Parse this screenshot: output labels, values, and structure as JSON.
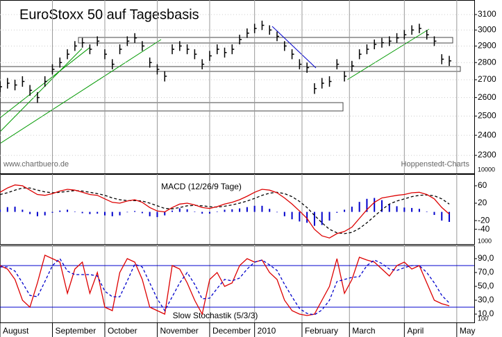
{
  "chart_data": [
    {
      "type": "ohlc",
      "title": "EuroStoxx 50 auf Tagesbasis",
      "color": "#000000",
      "log_scale": true,
      "grid": true,
      "xlim": [
        0,
        190
      ],
      "ylim": [
        2214,
        3197
      ],
      "yticks": [
        2300,
        2400,
        2500,
        2600,
        2700,
        2800,
        2900,
        3000,
        3100
      ],
      "annotations": [
        "www.chartbuero.de",
        "Hoppenstedt-Charts"
      ],
      "x": [
        0,
        3,
        6,
        9,
        12,
        15,
        18,
        21,
        24,
        27,
        30,
        33,
        36,
        39,
        42,
        45,
        48,
        51,
        54,
        57,
        60,
        63,
        66,
        69,
        72,
        75,
        78,
        81,
        84,
        87,
        90,
        93,
        96,
        99,
        102,
        105,
        108,
        111,
        114,
        117,
        120,
        123,
        126,
        129,
        132,
        135,
        138,
        141,
        144,
        147,
        150,
        153,
        156,
        159,
        162,
        165,
        168,
        171,
        174,
        177,
        180
      ],
      "high": [
        2690,
        2710,
        2700,
        2720,
        2670,
        2630,
        2720,
        2790,
        2830,
        2880,
        2930,
        2950,
        2910,
        2960,
        2880,
        2820,
        2910,
        2960,
        2980,
        2930,
        2830,
        2790,
        2750,
        2910,
        2930,
        2910,
        2880,
        2820,
        2870,
        2910,
        2890,
        2910,
        2970,
        3010,
        3040,
        3060,
        3030,
        2990,
        2930,
        2880,
        2820,
        2800,
        2680,
        2710,
        2720,
        2820,
        2750,
        2810,
        2880,
        2910,
        2940,
        2950,
        2960,
        2980,
        3000,
        3030,
        3040,
        3000,
        2960,
        2850,
        2840
      ],
      "low": [
        2630,
        2650,
        2640,
        2660,
        2610,
        2570,
        2660,
        2730,
        2770,
        2820,
        2870,
        2890,
        2850,
        2900,
        2820,
        2760,
        2850,
        2900,
        2920,
        2870,
        2770,
        2730,
        2690,
        2850,
        2870,
        2850,
        2820,
        2760,
        2810,
        2850,
        2830,
        2850,
        2910,
        2950,
        2980,
        3000,
        2970,
        2930,
        2870,
        2820,
        2760,
        2740,
        2620,
        2650,
        2660,
        2760,
        2690,
        2750,
        2820,
        2850,
        2880,
        2890,
        2900,
        2920,
        2940,
        2970,
        2980,
        2940,
        2900,
        2790,
        2780
      ],
      "close": [
        2660,
        2680,
        2670,
        2690,
        2640,
        2600,
        2690,
        2760,
        2800,
        2850,
        2900,
        2920,
        2880,
        2930,
        2850,
        2790,
        2880,
        2930,
        2950,
        2900,
        2800,
        2760,
        2720,
        2880,
        2900,
        2880,
        2850,
        2790,
        2840,
        2880,
        2860,
        2880,
        2940,
        2980,
        3010,
        3030,
        3000,
        2960,
        2900,
        2850,
        2790,
        2770,
        2650,
        2680,
        2690,
        2790,
        2720,
        2780,
        2850,
        2880,
        2910,
        2920,
        2930,
        2950,
        2970,
        3000,
        3010,
        2970,
        2930,
        2820,
        2810
      ]
    },
    {
      "type": "line",
      "xlim": [
        0,
        190
      ],
      "ylim": [
        -74,
        87
      ],
      "yticks": [
        -40,
        -20,
        20,
        60
      ],
      "annotations": [
        "MACD (12/26/9 Tage)",
        "10000",
        "1000"
      ],
      "x": [
        0,
        3,
        6,
        9,
        12,
        15,
        18,
        21,
        24,
        27,
        30,
        33,
        36,
        39,
        42,
        45,
        48,
        51,
        54,
        57,
        60,
        63,
        66,
        69,
        72,
        75,
        78,
        81,
        84,
        87,
        90,
        93,
        96,
        99,
        102,
        105,
        108,
        111,
        114,
        117,
        120,
        123,
        126,
        129,
        132,
        135,
        138,
        141,
        144,
        147,
        150,
        153,
        156,
        159,
        162,
        165,
        168,
        171,
        174,
        177,
        180
      ],
      "series": [
        {
          "color": "#0000cc",
          "style": "bar",
          "values": [
            5,
            11,
            12,
            5,
            -5,
            -10,
            -8,
            -2,
            3,
            5,
            1,
            -3,
            -5,
            -4,
            -8,
            -10,
            -8,
            -1,
            2,
            -3,
            -10,
            -12,
            -8,
            3,
            8,
            6,
            1,
            -4,
            -4,
            1,
            5,
            6,
            8,
            11,
            14,
            14,
            7,
            -1,
            -10,
            -17,
            -22,
            -25,
            -32,
            -30,
            -20,
            -2,
            5,
            12,
            23,
            30,
            32,
            27,
            17,
            13,
            10,
            9,
            7,
            1,
            -7,
            -20,
            -23
          ]
        },
        {
          "color": "#000000",
          "style": "dashed",
          "values": [
            40,
            44,
            50,
            55,
            55,
            50,
            46,
            44,
            45,
            47,
            49,
            48,
            45,
            42,
            38,
            32,
            28,
            26,
            26,
            25,
            20,
            14,
            8,
            7,
            10,
            14,
            15,
            14,
            12,
            11,
            13,
            16,
            20,
            25,
            31,
            38,
            43,
            45,
            42,
            35,
            24,
            10,
            -8,
            -25,
            -40,
            -48,
            -50,
            -47,
            -38,
            -25,
            -10,
            5,
            18,
            25,
            30,
            35,
            38,
            39,
            37,
            30,
            18
          ]
        },
        {
          "color": "#dd0000",
          "style": "solid",
          "values": [
            45,
            55,
            62,
            60,
            50,
            40,
            38,
            42,
            48,
            52,
            50,
            45,
            40,
            38,
            30,
            22,
            20,
            25,
            28,
            22,
            10,
            2,
            0,
            10,
            18,
            20,
            16,
            10,
            8,
            12,
            18,
            22,
            28,
            36,
            45,
            52,
            50,
            44,
            32,
            18,
            2,
            -15,
            -40,
            -55,
            -60,
            -50,
            -45,
            -35,
            -15,
            5,
            22,
            32,
            35,
            38,
            40,
            44,
            45,
            40,
            30,
            10,
            -5
          ]
        }
      ]
    },
    {
      "type": "line",
      "xlim": [
        0,
        190
      ],
      "ylim": [
        -2,
        109
      ],
      "yticks": [
        {
          "value": 10,
          "label": "10,0"
        },
        {
          "value": 30,
          "label": "30,0"
        },
        {
          "value": 50,
          "label": "50,0"
        },
        {
          "value": 70,
          "label": "70,0"
        },
        {
          "value": 90,
          "label": "90,0"
        }
      ],
      "reference_lines": [
        20,
        80
      ],
      "reference_color": "#0000cc",
      "annotations": [
        "Slow Stochastik (5/3/3)",
        "100"
      ],
      "xticks": [
        {
          "value": 0,
          "label": "August"
        },
        {
          "value": 21,
          "label": "September"
        },
        {
          "value": 42,
          "label": "October"
        },
        {
          "value": 63,
          "label": "November"
        },
        {
          "value": 84,
          "label": "December"
        },
        {
          "value": 102,
          "label": "2010"
        },
        {
          "value": 121,
          "label": "February"
        },
        {
          "value": 140,
          "label": "March"
        },
        {
          "value": 162,
          "label": "April"
        },
        {
          "value": 183,
          "label": "May"
        }
      ],
      "x": [
        0,
        3,
        6,
        9,
        12,
        15,
        18,
        21,
        24,
        27,
        30,
        33,
        36,
        39,
        42,
        45,
        48,
        51,
        54,
        57,
        60,
        63,
        66,
        69,
        72,
        75,
        78,
        81,
        84,
        87,
        90,
        93,
        96,
        99,
        102,
        105,
        108,
        111,
        114,
        117,
        120,
        123,
        126,
        129,
        132,
        135,
        138,
        141,
        144,
        147,
        150,
        153,
        156,
        159,
        162,
        165,
        168,
        171,
        174,
        177,
        180
      ],
      "series": [
        {
          "color": "#dd0000",
          "style": "solid",
          "values": [
            80,
            75,
            60,
            30,
            20,
            55,
            95,
            90,
            85,
            40,
            75,
            85,
            40,
            70,
            20,
            15,
            70,
            90,
            85,
            60,
            20,
            15,
            10,
            80,
            75,
            55,
            30,
            10,
            60,
            70,
            50,
            55,
            80,
            90,
            85,
            88,
            70,
            60,
            30,
            15,
            10,
            8,
            10,
            30,
            50,
            90,
            40,
            60,
            92,
            88,
            85,
            75,
            65,
            80,
            85,
            75,
            80,
            55,
            30,
            25,
            22
          ]
        },
        {
          "color": "#0000cc",
          "style": "dashed",
          "values": [
            78,
            78,
            72,
            55,
            37,
            35,
            57,
            80,
            90,
            72,
            67,
            67,
            67,
            65,
            43,
            35,
            35,
            58,
            82,
            78,
            55,
            32,
            15,
            35,
            55,
            70,
            53,
            32,
            33,
            47,
            60,
            58,
            62,
            75,
            85,
            88,
            81,
            73,
            53,
            35,
            18,
            11,
            9,
            16,
            30,
            57,
            60,
            63,
            64,
            80,
            88,
            83,
            75,
            73,
            77,
            80,
            80,
            70,
            55,
            37,
            26
          ]
        }
      ]
    }
  ]
}
